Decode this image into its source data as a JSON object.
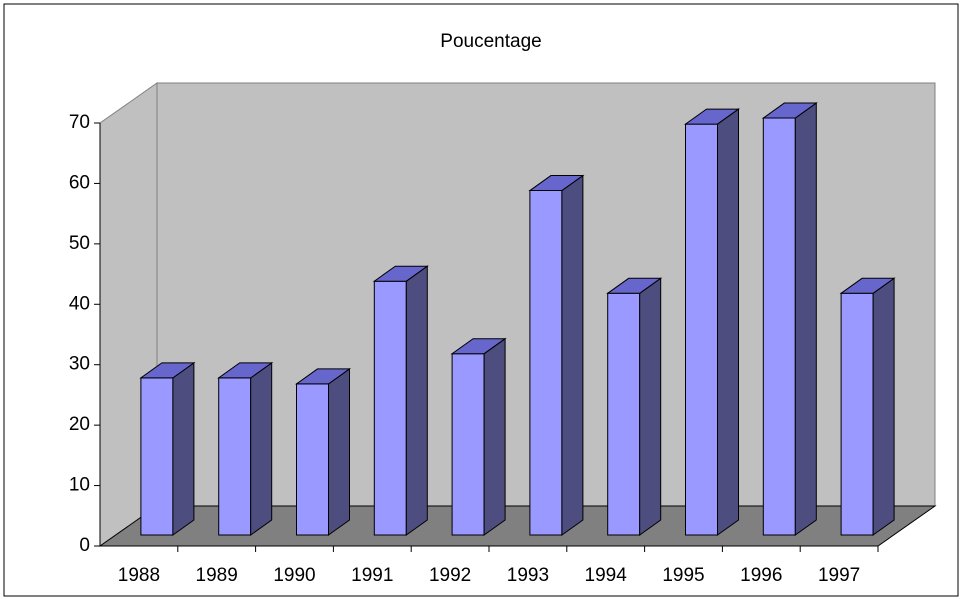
{
  "chart_data": {
    "type": "bar3d",
    "title": "Poucentage",
    "categories": [
      "1988",
      "1989",
      "1990",
      "1991",
      "1992",
      "1993",
      "1994",
      "1995",
      "1996",
      "1997"
    ],
    "values": [
      26,
      26,
      25,
      42,
      30,
      57,
      40,
      68,
      69,
      40
    ],
    "color": "#9999ff",
    "ylim": [
      0,
      70
    ],
    "yticks": [
      0,
      10,
      20,
      30,
      40,
      50,
      60,
      70
    ],
    "grid": false
  }
}
